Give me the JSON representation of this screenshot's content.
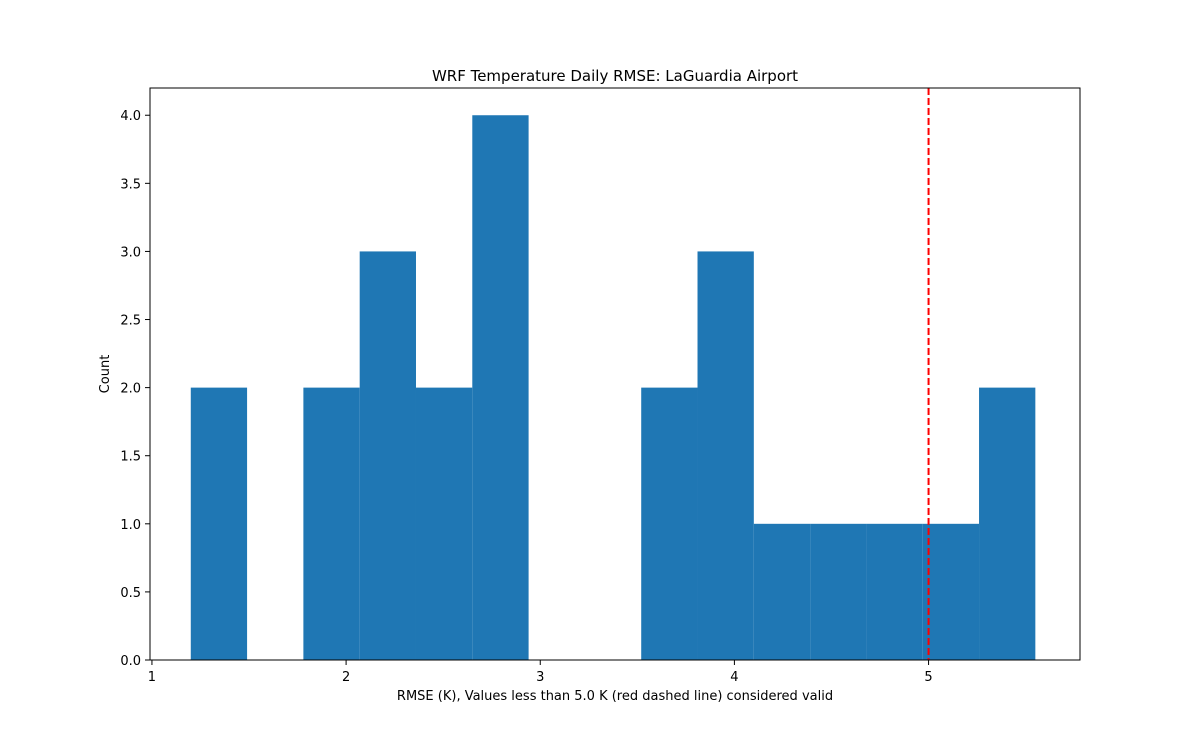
{
  "chart_data": {
    "type": "bar",
    "title": "WRF Temperature Daily RMSE: LaGuardia Airport",
    "xlabel": "RMSE (K), Values less than 5.0 K (red dashed line) considered valid",
    "ylabel": "Count",
    "xlim": [
      0.99,
      5.78
    ],
    "ylim": [
      0,
      4.2
    ],
    "xticks": [
      1,
      2,
      3,
      4,
      5
    ],
    "yticks": [
      "0.0",
      "0.5",
      "1.0",
      "1.5",
      "2.0",
      "2.5",
      "3.0",
      "3.5",
      "4.0"
    ],
    "bin_edges": [
      1.2,
      1.49,
      1.78,
      2.07,
      2.36,
      2.65,
      2.94,
      3.23,
      3.52,
      3.81,
      4.1,
      4.39,
      4.68,
      4.97,
      5.26,
      5.55
    ],
    "counts": [
      2,
      0,
      2,
      3,
      2,
      4,
      0,
      0,
      2,
      3,
      1,
      1,
      1,
      1,
      2
    ],
    "bar_color": "#1f77b4",
    "threshold": {
      "x": 5.0,
      "color": "#ff0000",
      "style": "dashed"
    },
    "grid": false
  }
}
